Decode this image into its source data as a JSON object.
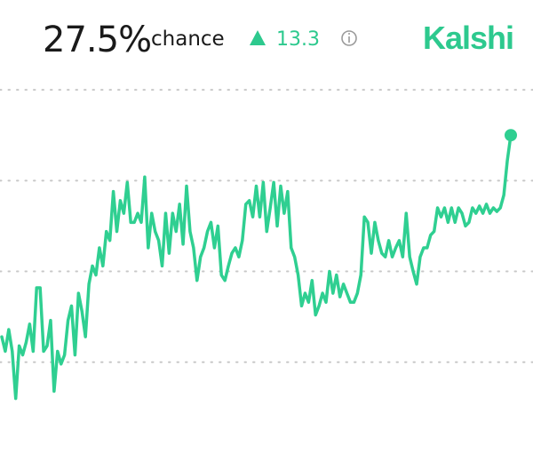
{
  "chart_data": {
    "type": "line",
    "headline": "27.5%",
    "headline_label": "chance",
    "change": "13.3",
    "brand": "Kalshi",
    "color": "#2fcf91",
    "ylim": [
      10,
      32.5
    ],
    "gridlines": [
      15,
      20,
      25,
      30
    ],
    "grid": true,
    "values": [
      16.4,
      15.6,
      16.8,
      15.6,
      13.0,
      15.9,
      15.4,
      16.1,
      17.1,
      15.6,
      19.1,
      19.1,
      15.6,
      15.9,
      17.3,
      13.4,
      15.6,
      14.9,
      15.4,
      17.3,
      18.1,
      15.4,
      18.8,
      17.8,
      16.4,
      19.3,
      20.3,
      19.8,
      21.3,
      20.3,
      22.2,
      21.7,
      24.4,
      22.2,
      23.9,
      23.2,
      24.9,
      22.7,
      22.7,
      23.2,
      22.7,
      25.2,
      21.3,
      23.2,
      22.2,
      21.7,
      20.3,
      23.2,
      21.0,
      23.2,
      22.2,
      23.7,
      21.5,
      24.7,
      22.2,
      21.3,
      19.5,
      20.8,
      21.3,
      22.2,
      22.7,
      21.3,
      22.5,
      19.8,
      19.5,
      20.3,
      21.0,
      21.3,
      20.8,
      21.7,
      23.7,
      23.9,
      23.0,
      24.7,
      23.0,
      24.9,
      22.2,
      23.5,
      24.9,
      22.5,
      24.7,
      23.2,
      24.4,
      21.3,
      20.8,
      19.8,
      18.1,
      18.8,
      18.3,
      19.5,
      17.6,
      18.1,
      18.8,
      18.3,
      20.0,
      18.8,
      19.8,
      18.6,
      19.3,
      18.8,
      18.3,
      18.3,
      18.8,
      19.8,
      23.0,
      22.7,
      21.0,
      22.7,
      21.7,
      21.0,
      20.8,
      21.7,
      20.8,
      21.3,
      21.7,
      20.8,
      23.2,
      20.8,
      20.0,
      19.3,
      20.8,
      21.3,
      21.3,
      22.0,
      22.2,
      23.5,
      23.0,
      23.5,
      22.7,
      23.5,
      22.7,
      23.5,
      23.2,
      22.5,
      22.7,
      23.5,
      23.2,
      23.6,
      23.2,
      23.7,
      23.2,
      23.5,
      23.3,
      23.5,
      24.2,
      26.1,
      27.5
    ]
  }
}
